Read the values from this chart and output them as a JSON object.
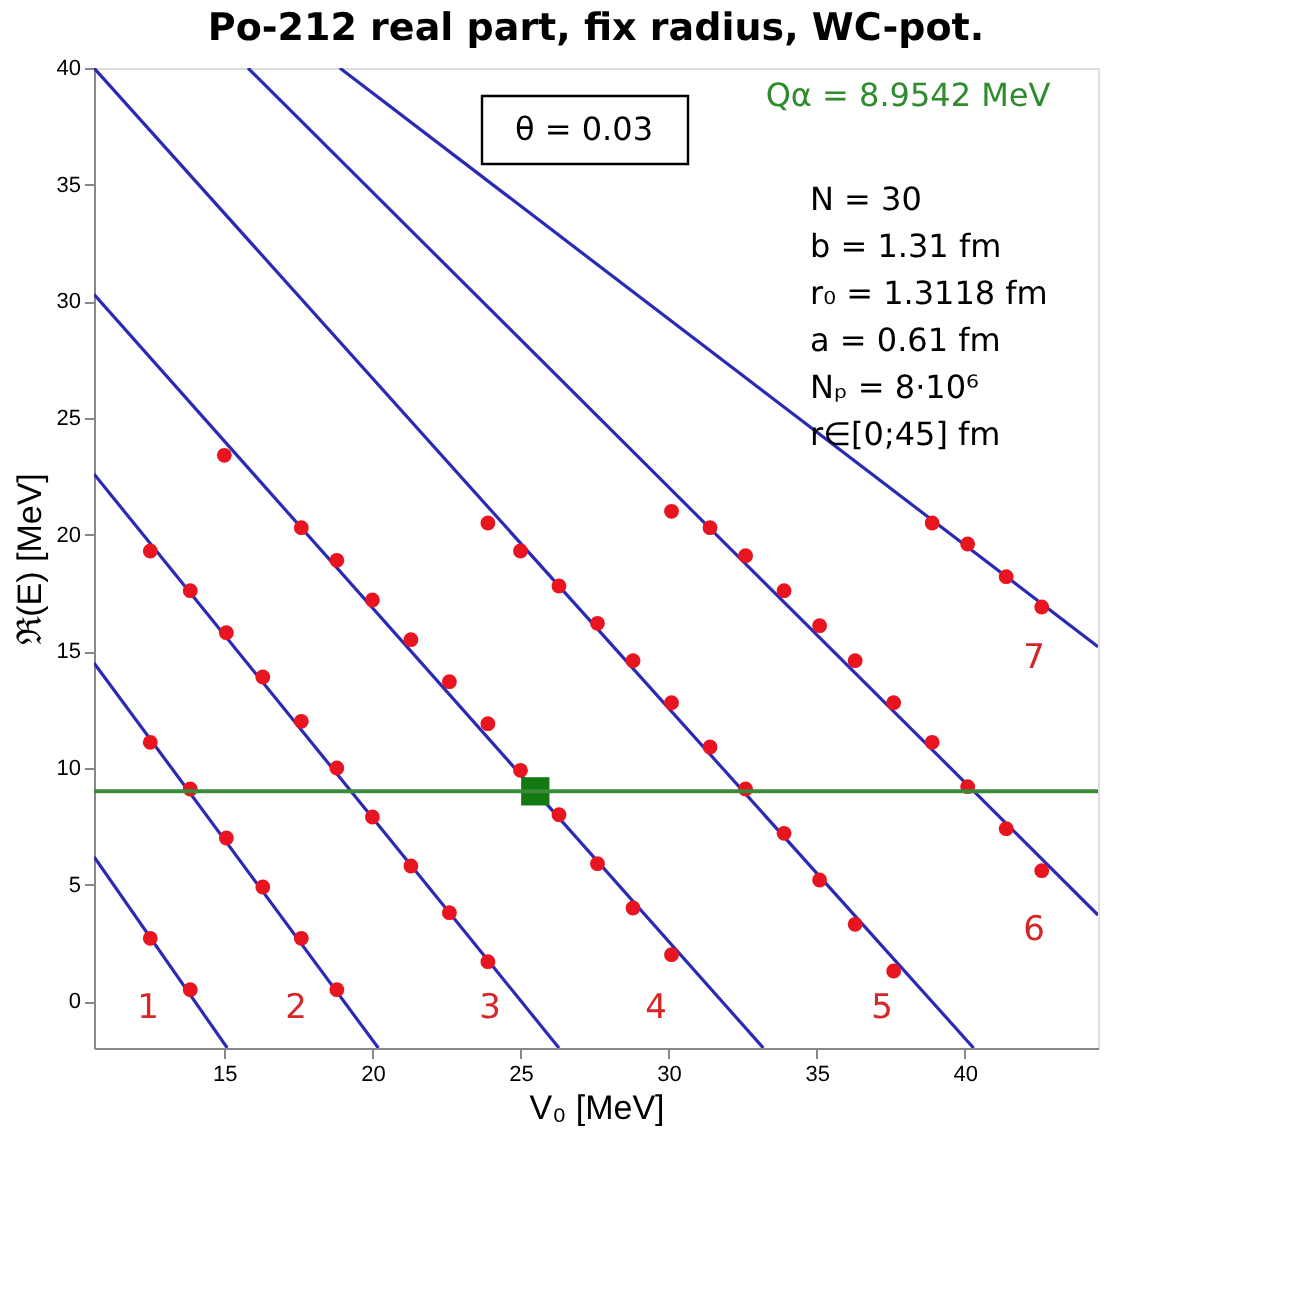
{
  "chart_data": {
    "type": "line",
    "title": "Po-212 real part, fix radius, WC-pot.",
    "xlabel": "V₀ [MeV]",
    "ylabel": "ℜ(E) [MeV]",
    "xlim": [
      10.6,
      44.5
    ],
    "ylim": [
      -2,
      40
    ],
    "xticks": [
      15,
      20,
      25,
      30,
      35,
      40
    ],
    "yticks": [
      0,
      5,
      10,
      15,
      20,
      25,
      30,
      35,
      40
    ],
    "grid": false,
    "series": [
      {
        "color": "#2a2ab4",
        "x": [
          10.6,
          15.1
        ],
        "values": [
          6.2,
          -2
        ]
      },
      {
        "color": "#2a2ab4",
        "x": [
          10.6,
          20.2
        ],
        "values": [
          14.5,
          -2
        ]
      },
      {
        "color": "#2a2ab4",
        "x": [
          10.6,
          26.3
        ],
        "values": [
          22.6,
          -2
        ]
      },
      {
        "color": "#2a2ab4",
        "x": [
          10.6,
          33.2
        ],
        "values": [
          30.3,
          -2
        ]
      },
      {
        "color": "#2a2ab4",
        "x": [
          10.6,
          40.3
        ],
        "values": [
          40,
          -2
        ]
      },
      {
        "color": "#2a2ab4",
        "x": [
          15.8,
          44.5
        ],
        "values": [
          40,
          3.7
        ]
      },
      {
        "color": "#2a2ab4",
        "x": [
          18.9,
          44.5
        ],
        "values": [
          40,
          15.2
        ]
      },
      {
        "type": "scatter",
        "marker": "circle",
        "color": "#e8141f",
        "x": [
          12.5,
          13.85,
          12.5,
          13.85,
          15.07,
          16.3,
          17.6,
          18.8,
          12.5,
          13.85,
          15.07,
          16.3,
          17.6,
          18.8,
          20.0,
          21.3,
          22.6,
          23.9,
          15.0,
          17.6,
          18.8,
          20.0,
          21.3,
          22.6,
          23.9,
          25.0,
          26.3,
          27.6,
          28.8,
          30.1,
          23.9,
          25.0,
          26.3,
          27.6,
          28.8,
          30.1,
          31.4,
          32.6,
          33.9,
          35.1,
          36.3,
          37.6,
          30.1,
          31.4,
          32.6,
          33.9,
          35.1,
          36.3,
          37.6,
          38.9,
          40.1,
          41.4,
          42.6,
          38.9,
          40.1,
          41.4,
          42.6
        ],
        "values": [
          2.7,
          0.5,
          11.1,
          9.1,
          7.0,
          4.9,
          2.7,
          0.5,
          19.3,
          17.6,
          15.8,
          13.9,
          12.0,
          10.0,
          7.9,
          5.8,
          3.8,
          1.7,
          23.4,
          20.3,
          18.9,
          17.2,
          15.5,
          13.7,
          11.9,
          9.9,
          8.0,
          5.9,
          4.0,
          2.0,
          20.5,
          19.3,
          17.8,
          16.2,
          14.6,
          12.8,
          10.9,
          9.1,
          7.2,
          5.2,
          3.3,
          1.3,
          21.0,
          20.3,
          19.1,
          17.6,
          16.1,
          14.6,
          12.8,
          11.1,
          9.2,
          7.4,
          5.6,
          20.5,
          19.6,
          18.2,
          16.9
        ]
      },
      {
        "type": "scatter",
        "marker": "square",
        "color": "#137a13",
        "x": [
          25.5
        ],
        "values": [
          9.0
        ]
      }
    ],
    "ref_lines": [
      {
        "axis": "y",
        "value": 9.0,
        "color": "#3a8a3a"
      }
    ],
    "annotations": [
      "θ = 0.03",
      "Qα = 8.9542 MeV",
      "N = 30",
      "b = 1.31 fm",
      "r₀ = 1.3118 fm",
      "a = 0.61 fm",
      "Nₚ = 8·10⁶",
      "r∈[0;45] fm",
      "1",
      "2",
      "3",
      "4",
      "5",
      "6",
      "7"
    ]
  }
}
